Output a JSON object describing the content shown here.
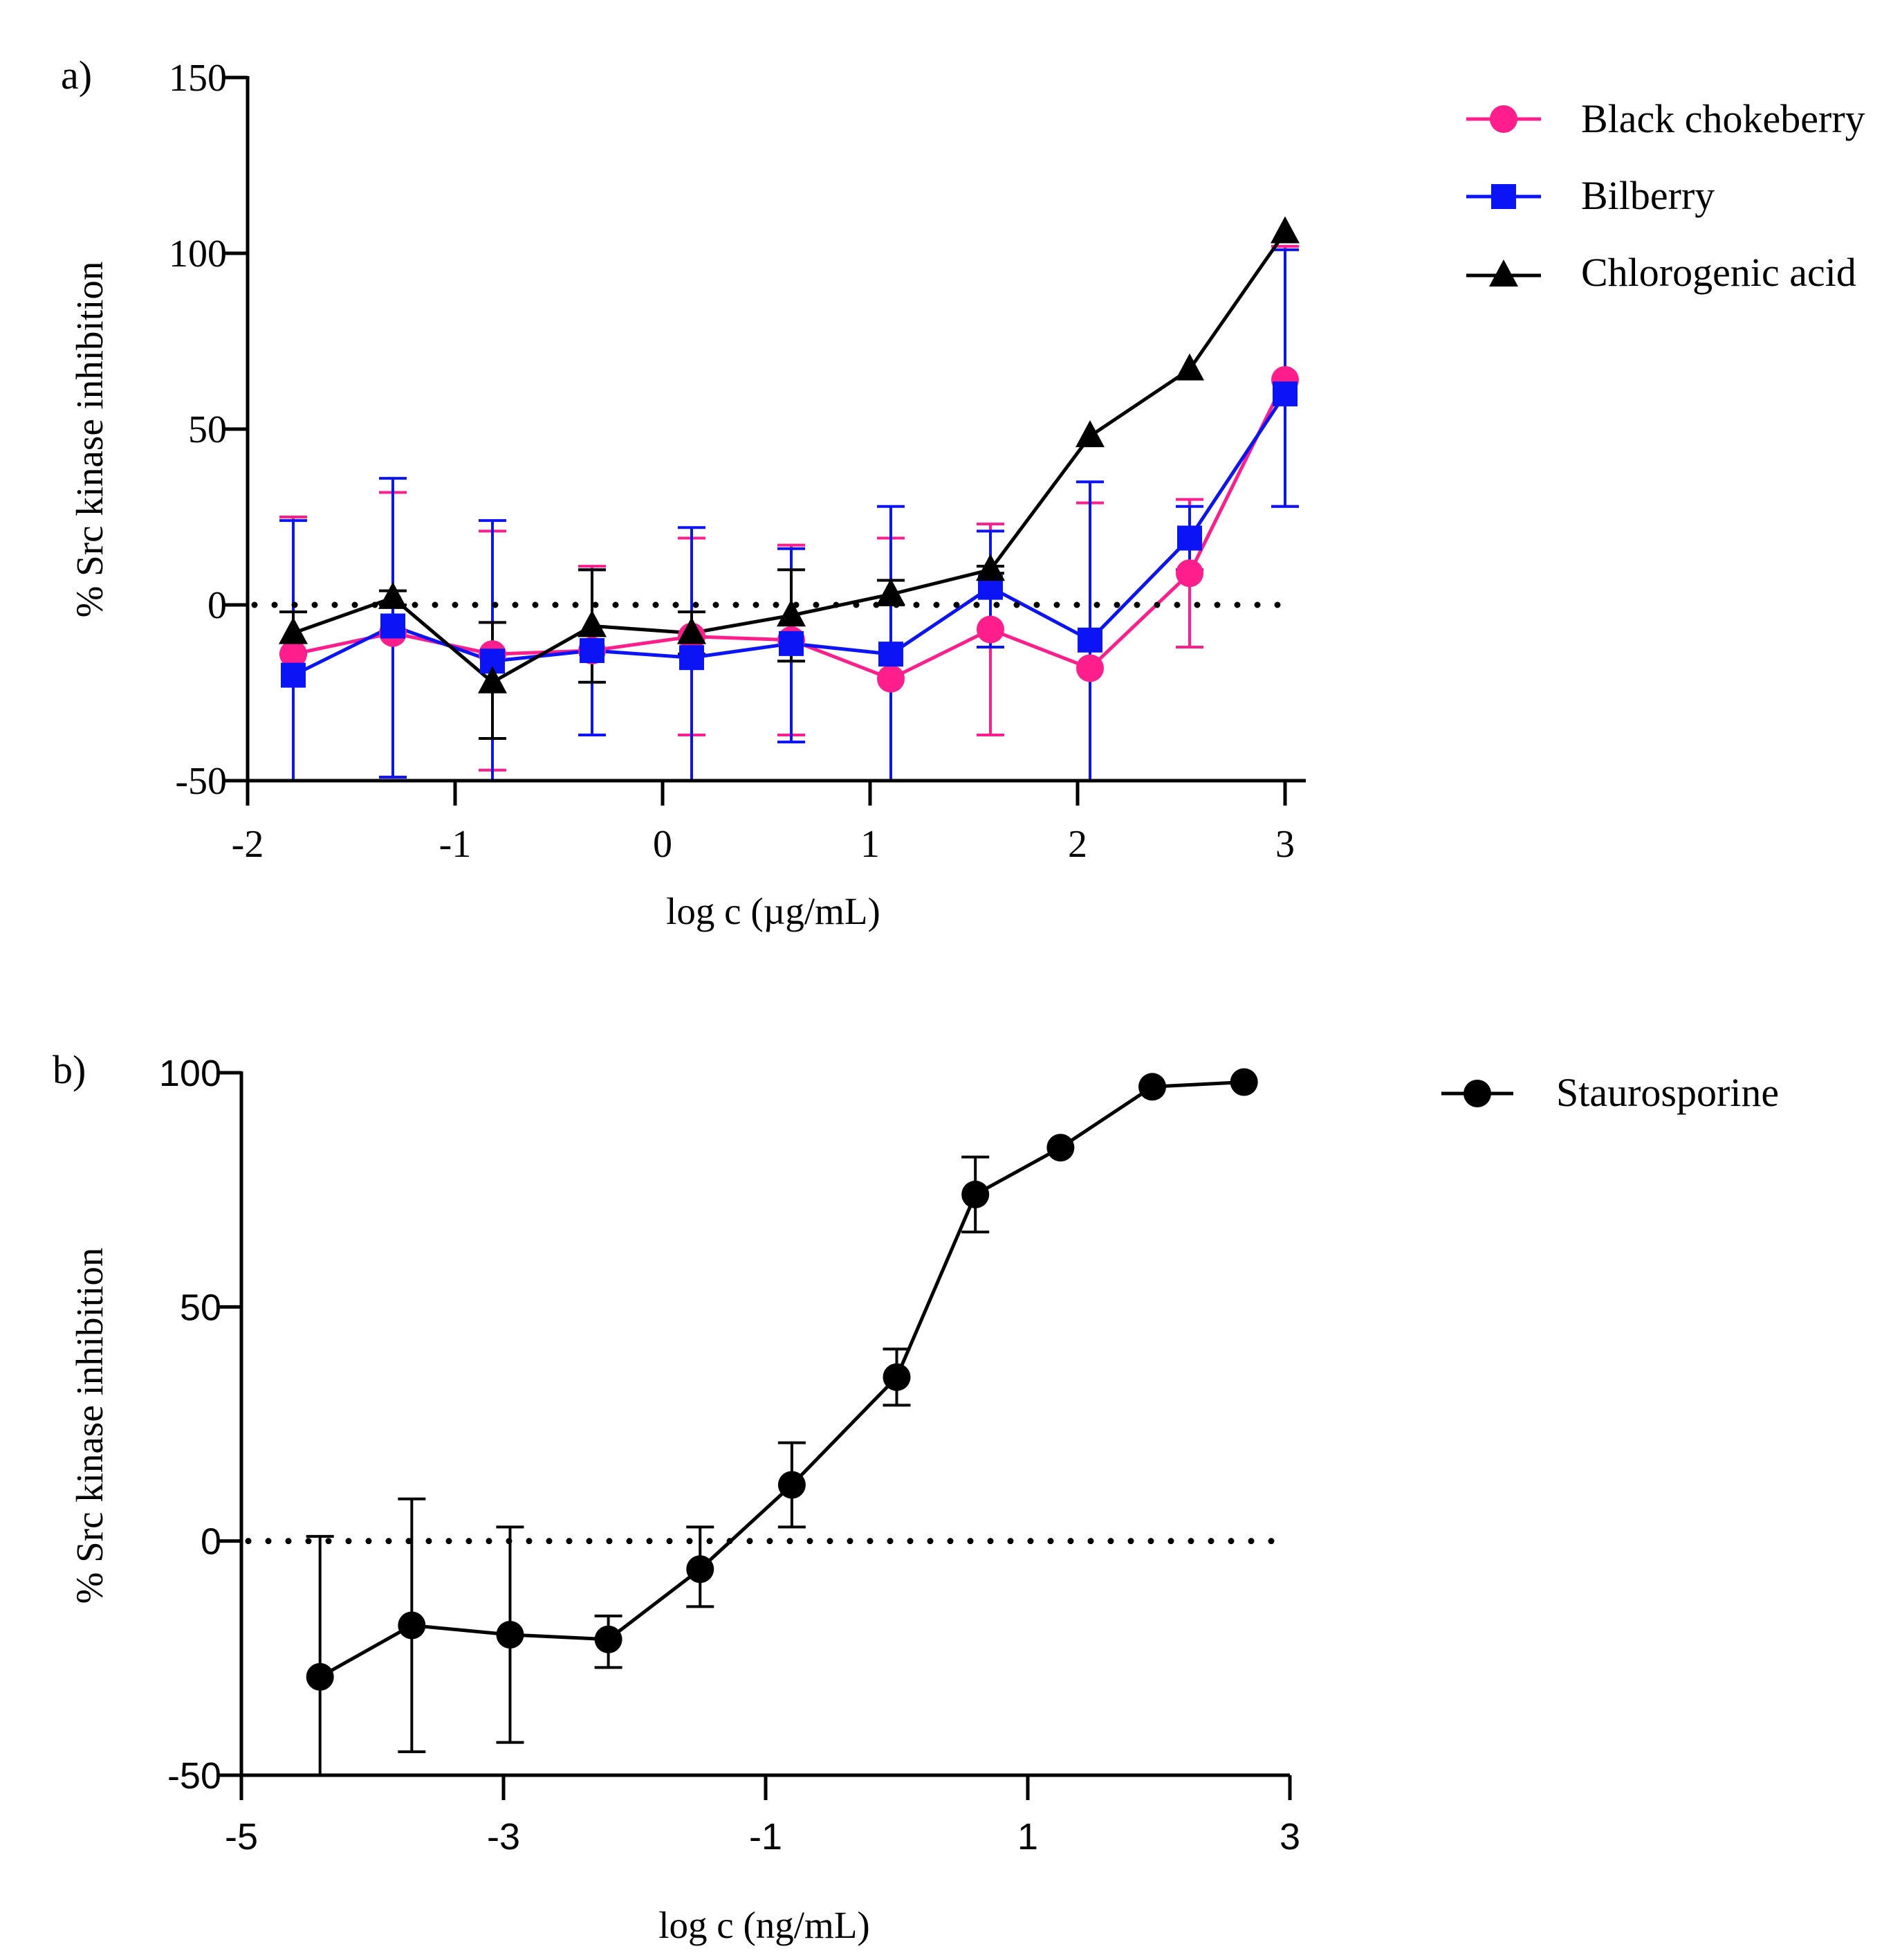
{
  "colors": {
    "black_chokeberry": "#ff1e8c",
    "bilberry": "#0a14f5",
    "chlorogenic_acid": "#000000",
    "staurosporine": "#000000",
    "axis": "#000000"
  },
  "chart_data": [
    {
      "panel": "a)",
      "type": "line",
      "title": "",
      "xlabel": "log c (µg/mL)",
      "ylabel": "% Src kinase inhibition",
      "xlim": [
        -2,
        3.1
      ],
      "ylim": [
        -50,
        150
      ],
      "xticks": [
        -2,
        -1,
        0,
        1,
        2,
        3
      ],
      "yticks": [
        -50,
        0,
        50,
        100,
        150
      ],
      "x_tick_labels": [
        "-2",
        "-1",
        "0",
        "1",
        "2",
        "3"
      ],
      "y_tick_labels": [
        "-50",
        "0",
        "50",
        "100",
        "150"
      ],
      "reference_line": {
        "y": 0,
        "style": "dotted"
      },
      "legend_position": "top-right outside",
      "series": [
        {
          "name": "Black chokeberry",
          "color_key": "black_chokeberry",
          "marker": "circle",
          "x": [
            -1.78,
            -1.3,
            -0.82,
            -0.34,
            0.14,
            0.62,
            1.1,
            1.58,
            2.06,
            2.54,
            3.0
          ],
          "y": [
            -14,
            -8,
            -14,
            -13,
            -9,
            -10,
            -21,
            -7,
            -18,
            9,
            64
          ],
          "err_upper": [
            25,
            32,
            21,
            11,
            19,
            17,
            19,
            23,
            29,
            30,
            102
          ],
          "err_lower": [
            -50,
            -49,
            -47,
            -37,
            -37,
            -37,
            -50,
            -37,
            -50,
            -12,
            28
          ]
        },
        {
          "name": "Bilberry",
          "color_key": "bilberry",
          "marker": "square",
          "x": [
            -1.78,
            -1.3,
            -0.82,
            -0.34,
            0.14,
            0.62,
            1.1,
            1.58,
            2.06,
            2.54,
            3.0
          ],
          "y": [
            -20,
            -6,
            -16,
            -13,
            -15,
            -11,
            -14,
            5,
            -10,
            19,
            60
          ],
          "err_upper": [
            24,
            36,
            24,
            10,
            22,
            16,
            28,
            21,
            35,
            28,
            101
          ],
          "err_lower": [
            -50,
            -49,
            -50,
            -37,
            -50,
            -39,
            -50,
            -12,
            -50,
            10,
            28
          ]
        },
        {
          "name": "Chlorogenic acid",
          "color_key": "chlorogenic_acid",
          "marker": "triangle",
          "x": [
            -1.78,
            -1.3,
            -0.82,
            -0.34,
            0.14,
            0.62,
            1.1,
            1.58,
            2.06,
            2.54,
            3.0
          ],
          "y": [
            -8,
            2,
            -22,
            -6,
            -8,
            -3,
            3,
            10,
            48,
            67,
            106
          ],
          "err_upper": [
            -2,
            4,
            -5,
            10,
            -2,
            10,
            7,
            11,
            48,
            67,
            106
          ],
          "err_lower": [
            -14,
            0,
            -38,
            -22,
            -14,
            -16,
            0,
            9,
            48,
            67,
            106
          ]
        }
      ]
    },
    {
      "panel": "b)",
      "type": "line",
      "title": "",
      "xlabel": "log c (ng/mL)",
      "ylabel": "% Src kinase inhibition",
      "xlim": [
        -5,
        3
      ],
      "ylim": [
        -50,
        100
      ],
      "xticks": [
        -5,
        -3,
        -1,
        1,
        3
      ],
      "yticks": [
        -50,
        0,
        50,
        100
      ],
      "x_tick_labels": [
        "-5",
        "-3",
        "-1",
        "1",
        "3"
      ],
      "y_tick_labels": [
        "-50",
        "0",
        "50",
        "100"
      ],
      "reference_line": {
        "y": 0,
        "style": "dotted"
      },
      "legend_position": "top-right outside",
      "series": [
        {
          "name": "Staurosporine",
          "color_key": "staurosporine",
          "marker": "circle",
          "x": [
            -4.4,
            -3.7,
            -2.95,
            -2.2,
            -1.5,
            -0.8,
            0.0,
            0.6,
            1.25,
            1.95,
            2.65
          ],
          "y": [
            -29,
            -18,
            -20,
            -21,
            -6,
            12,
            35,
            74,
            84,
            97,
            98
          ],
          "err_upper": [
            1,
            9,
            3,
            -16,
            3,
            21,
            41,
            82,
            84,
            97,
            98
          ],
          "err_lower": [
            -50,
            -45,
            -43,
            -27,
            -14,
            3,
            29,
            66,
            84,
            97,
            98
          ]
        }
      ]
    }
  ]
}
